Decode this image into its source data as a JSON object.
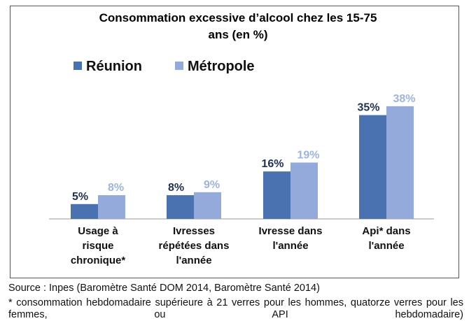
{
  "chart_data": {
    "type": "bar",
    "title": [
      "Consommation excessive d’alcool chez les 15-75",
      "ans (en %)"
    ],
    "categories": [
      "Usage à risque chronique*",
      "Ivresses répétées dans l'année",
      "Ivresse dans l'année",
      "Api* dans l'année"
    ],
    "series": [
      {
        "name": "Réunion",
        "color": "#4a72b0",
        "label_color": "#1f3050",
        "values": [
          5,
          8,
          16,
          35
        ],
        "value_labels": [
          "5%",
          "8%",
          "16%",
          "35%"
        ]
      },
      {
        "name": "Métropole",
        "color": "#93aadb",
        "label_color": "#9db4e0",
        "values": [
          8,
          9,
          19,
          38
        ],
        "value_labels": [
          "8%",
          "9%",
          "19%",
          "38%"
        ]
      }
    ],
    "source": "Source : Inpes (Baromètre Santé DOM 2014, Baromètre Santé 2014)",
    "footnote": "* consommation hebdomadaire supérieure à 21 verres pour les hommes, quatorze verres pour les femmes, ou API hebdomadaire)"
  }
}
